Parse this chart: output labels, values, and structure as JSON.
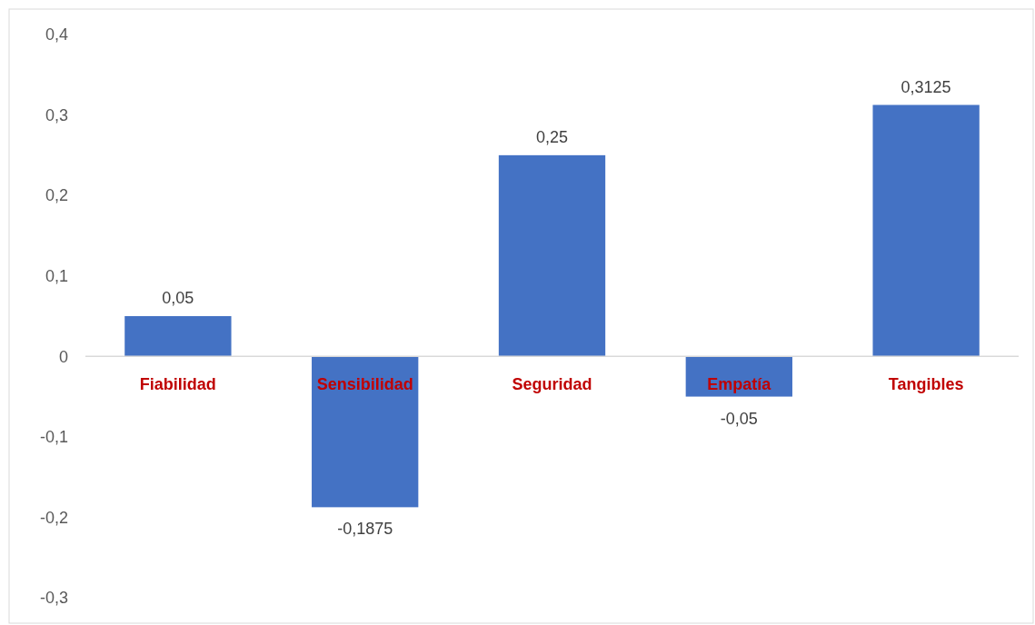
{
  "chart_data": {
    "type": "bar",
    "categories": [
      "Fiabilidad",
      "Sensibilidad",
      "Seguridad",
      "Empatía",
      "Tangibles"
    ],
    "values": [
      0.05,
      -0.1875,
      0.25,
      -0.05,
      0.3125
    ],
    "value_labels": [
      "0,05",
      "-0,1875",
      "0,25",
      "-0,05",
      "0,3125"
    ],
    "color": "#4472c4",
    "ylim": [
      -0.3,
      0.4
    ],
    "yticks": [
      {
        "value": -0.3,
        "label": "-0,3"
      },
      {
        "value": -0.2,
        "label": "-0,2"
      },
      {
        "value": -0.1,
        "label": "-0,1"
      },
      0,
      {
        "value": 0.1,
        "label": "0,1"
      },
      {
        "value": 0.2,
        "label": "0,2"
      },
      {
        "value": 0.3,
        "label": "0,3"
      },
      {
        "value": 0.4,
        "label": "0,4"
      }
    ],
    "grid": false
  }
}
